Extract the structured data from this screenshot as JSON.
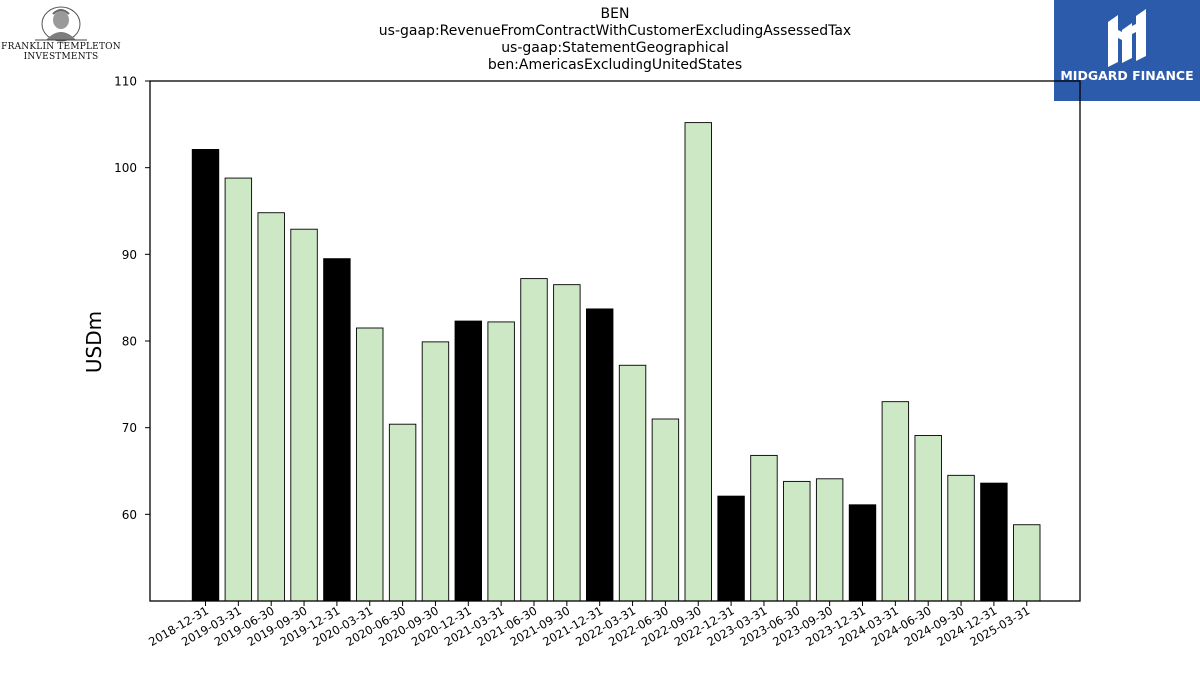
{
  "chart_data": {
    "type": "bar",
    "title_lines": [
      "BEN",
      "us-gaap:RevenueFromContractWithCustomerExcludingAssessedTax",
      "us-gaap:StatementGeographical",
      "ben:AmericasExcludingUnitedStates"
    ],
    "ylabel": "USDm",
    "xlabel": "",
    "ylim": [
      50,
      110
    ],
    "yticks": [
      60,
      70,
      80,
      90,
      100,
      110
    ],
    "grid": false,
    "categories": [
      "2018-12-31",
      "2019-03-31",
      "2019-06-30",
      "2019-09-30",
      "2019-12-31",
      "2020-03-31",
      "2020-06-30",
      "2020-09-30",
      "2020-12-31",
      "2021-03-31",
      "2021-06-30",
      "2021-09-30",
      "2021-12-31",
      "2022-03-31",
      "2022-06-30",
      "2022-09-30",
      "2022-12-31",
      "2023-03-31",
      "2023-06-30",
      "2023-09-30",
      "2023-12-31",
      "2024-03-31",
      "2024-06-30",
      "2024-09-30",
      "2024-12-31",
      "2025-03-31"
    ],
    "values": [
      102.1,
      98.8,
      94.8,
      92.9,
      89.5,
      81.5,
      70.4,
      79.9,
      82.3,
      82.2,
      87.2,
      86.5,
      83.7,
      77.2,
      71.0,
      105.2,
      62.1,
      66.8,
      63.8,
      64.1,
      61.1,
      73.0,
      69.1,
      64.5,
      63.6,
      58.8
    ],
    "highlighted": [
      true,
      false,
      false,
      false,
      true,
      false,
      false,
      false,
      true,
      false,
      false,
      false,
      true,
      false,
      false,
      false,
      true,
      false,
      false,
      false,
      true,
      false,
      false,
      false,
      true,
      false
    ],
    "colors": {
      "highlight": "#000000",
      "normal": "#cce8c5",
      "edge": "#000000"
    }
  },
  "branding": {
    "left_logo": {
      "line1": "FRANKLIN TEMPLETON",
      "line2": "INVESTMENTS",
      "icon": "franklin-portrait-icon"
    },
    "right_logo": {
      "name": "MIDGARD FINANCE",
      "background": "#2d5bab",
      "icon": "midgard-m-icon"
    }
  }
}
